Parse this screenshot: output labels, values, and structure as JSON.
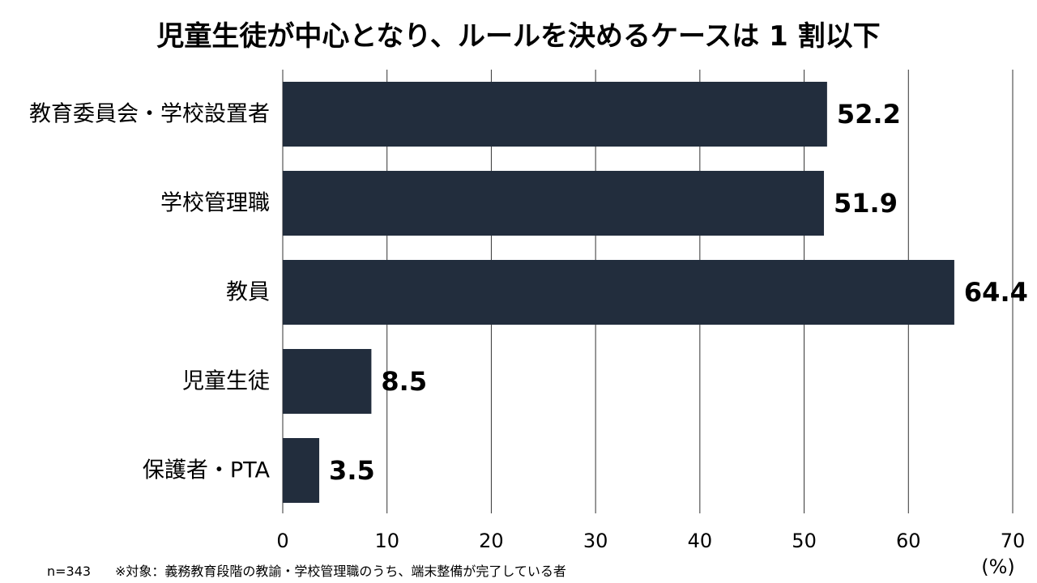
{
  "chart_data": {
    "type": "bar",
    "orientation": "horizontal",
    "title": "児童生徒が中心となり、ルールを決めるケースは 1 割以下",
    "categories": [
      "教育委員会・学校設置者",
      "学校管理職",
      "教員",
      "児童生徒",
      "保護者・PTA"
    ],
    "values": [
      52.2,
      51.9,
      64.4,
      8.5,
      3.5
    ],
    "value_labels": [
      "52.2",
      "51.9",
      "64.4",
      "8.5",
      "3.5"
    ],
    "xlim": [
      0,
      70
    ],
    "xticks": [
      0,
      10,
      20,
      30,
      40,
      50,
      60,
      70
    ],
    "x_unit": "(%)",
    "grid": true,
    "bar_color": "#222d3d",
    "grid_color": "#333333"
  },
  "footnote": {
    "sample": "n=343",
    "note": "※対象：義務教育段階の教諭・学校管理職のうち、端末整備が完了している者"
  }
}
